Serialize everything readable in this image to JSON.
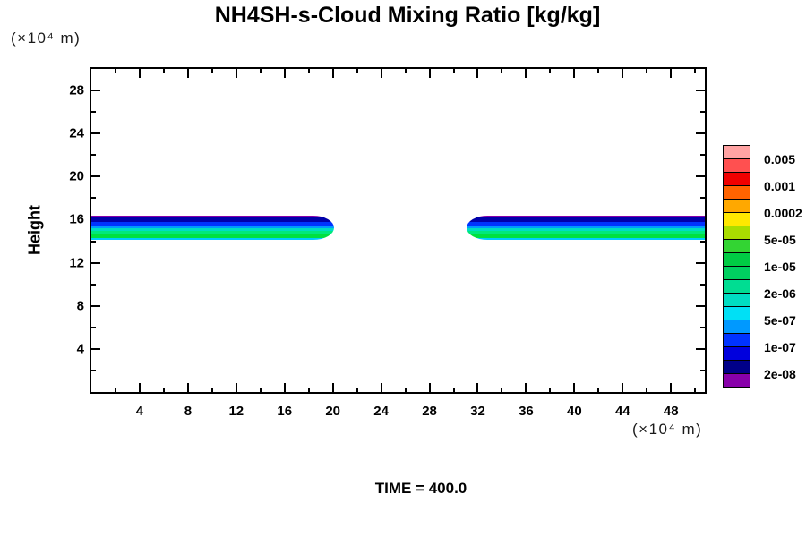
{
  "title": "NH4SH-s-Cloud Mixing Ratio [kg/kg]",
  "y_axis_unit": "(×10⁴ m)",
  "x_axis_unit": "(×10⁴ m)",
  "y_axis_title": "Height",
  "time_label": "TIME = 400.0",
  "colors": {
    "background": "#ffffff",
    "frame": "#000000",
    "text": "#000000"
  },
  "chart_data": {
    "type": "heatmap",
    "subtype": "filled-contour height vs distance cross-section of cloud mixing ratio",
    "title": "NH4SH-s-Cloud Mixing Ratio [kg/kg]",
    "xlabel": "(×10⁴ m)",
    "ylabel": "Height",
    "ylabel_unit": "(×10⁴ m)",
    "xlim": [
      0,
      50.8
    ],
    "ylim": [
      0,
      30
    ],
    "grid": false,
    "time_value": "400.0",
    "x_major_ticks": [
      4,
      8,
      12,
      16,
      20,
      24,
      28,
      32,
      36,
      40,
      44,
      48
    ],
    "x_minor_ticks": [
      2,
      6,
      10,
      14,
      18,
      22,
      26,
      30,
      34,
      38,
      42,
      46,
      50
    ],
    "y_major_ticks": [
      4,
      8,
      12,
      16,
      20,
      24,
      28
    ],
    "y_minor_ticks": [
      2,
      6,
      10,
      14,
      18,
      22,
      26
    ],
    "legend_position": "right",
    "legend_levels": [
      "0.005",
      "0.001",
      "0.0002",
      "5e-05",
      "1e-05",
      "2e-06",
      "5e-07",
      "1e-07",
      "2e-08"
    ],
    "legend_colors_top_to_bottom": [
      "#FFA3A3",
      "#FF5050",
      "#F00000",
      "#FF6300",
      "#FFA800",
      "#FFE800",
      "#AADD00",
      "#33D433",
      "#00CC44",
      "#00D060",
      "#00DD92",
      "#00DDC2",
      "#00E0F5",
      "#0099FF",
      "#0033FF",
      "#0000DD",
      "#000088",
      "#8800AA"
    ],
    "bands": [
      {
        "name": "left-cloud-band",
        "x_range": [
          0,
          20.1
        ],
        "height_range": [
          14.15,
          16.4
        ],
        "tip_side": "right",
        "layers_top_to_bottom": [
          {
            "color": "#8800AA",
            "thickness_px": 2
          },
          {
            "color": "#0000AA",
            "thickness_px": 5
          },
          {
            "color": "#0033FF",
            "thickness_px": 4
          },
          {
            "color": "#0099FF",
            "thickness_px": 3
          },
          {
            "color": "#00DDC2",
            "thickness_px": 3
          },
          {
            "color": "#00E87C",
            "thickness_px": 4
          },
          {
            "color": "#00E040",
            "thickness_px": 4
          },
          {
            "color": "#00CCFF",
            "thickness_px": 2
          }
        ]
      },
      {
        "name": "right-cloud-band",
        "x_range": [
          31.1,
          50.8
        ],
        "height_range": [
          14.15,
          16.4
        ],
        "tip_side": "left",
        "layers_top_to_bottom": [
          {
            "color": "#8800AA",
            "thickness_px": 2
          },
          {
            "color": "#0000AA",
            "thickness_px": 5
          },
          {
            "color": "#0033FF",
            "thickness_px": 4
          },
          {
            "color": "#0099FF",
            "thickness_px": 3
          },
          {
            "color": "#00DDC2",
            "thickness_px": 3
          },
          {
            "color": "#00E87C",
            "thickness_px": 4
          },
          {
            "color": "#00E040",
            "thickness_px": 4
          },
          {
            "color": "#00CCFF",
            "thickness_px": 2
          }
        ]
      }
    ]
  }
}
